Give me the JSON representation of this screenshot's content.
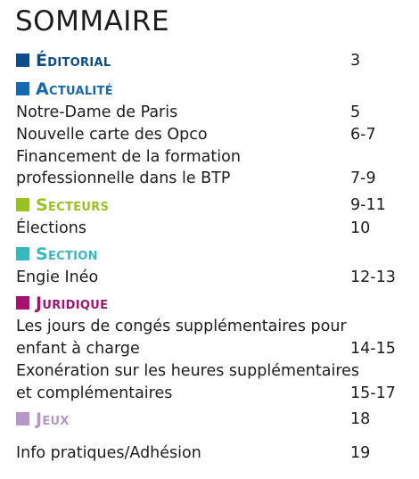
{
  "title": "SOMMAIRE",
  "sections": [
    {
      "label": "Éditorial",
      "page": "3",
      "color": "#0c4d8a"
    },
    {
      "label": "Actualité",
      "page": "",
      "color": "#1568b2"
    },
    {
      "label": "Secteurs",
      "page": "9-11",
      "color": "#9ac21f"
    },
    {
      "label": "Section",
      "page": "",
      "color": "#35b9c1"
    },
    {
      "label": "Juridique",
      "page": "",
      "color": "#a8126e"
    },
    {
      "label": "Jeux",
      "page": "18",
      "color": "#b597c8"
    }
  ],
  "entries": [
    {
      "label": "Notre-Dame de Paris",
      "page": "5"
    },
    {
      "label": "Nouvelle carte des Opco",
      "page": "6-7"
    },
    {
      "label": "Financement de la formation",
      "page": ""
    },
    {
      "label": "professionnelle dans le BTP",
      "page": "7-9"
    },
    {
      "label": "Élections",
      "page": "10"
    },
    {
      "label": "Engie Inéo",
      "page": "12-13"
    },
    {
      "label": "Les jours de congés supplémentaires pour",
      "page": ""
    },
    {
      "label": "enfant à charge",
      "page": "14-15"
    },
    {
      "label": "Exonération sur les heures supplémentaires",
      "page": ""
    },
    {
      "label": "et complémentaires",
      "page": "15-17"
    },
    {
      "label": "Info pratiques/Adhésion",
      "page": "19"
    }
  ]
}
